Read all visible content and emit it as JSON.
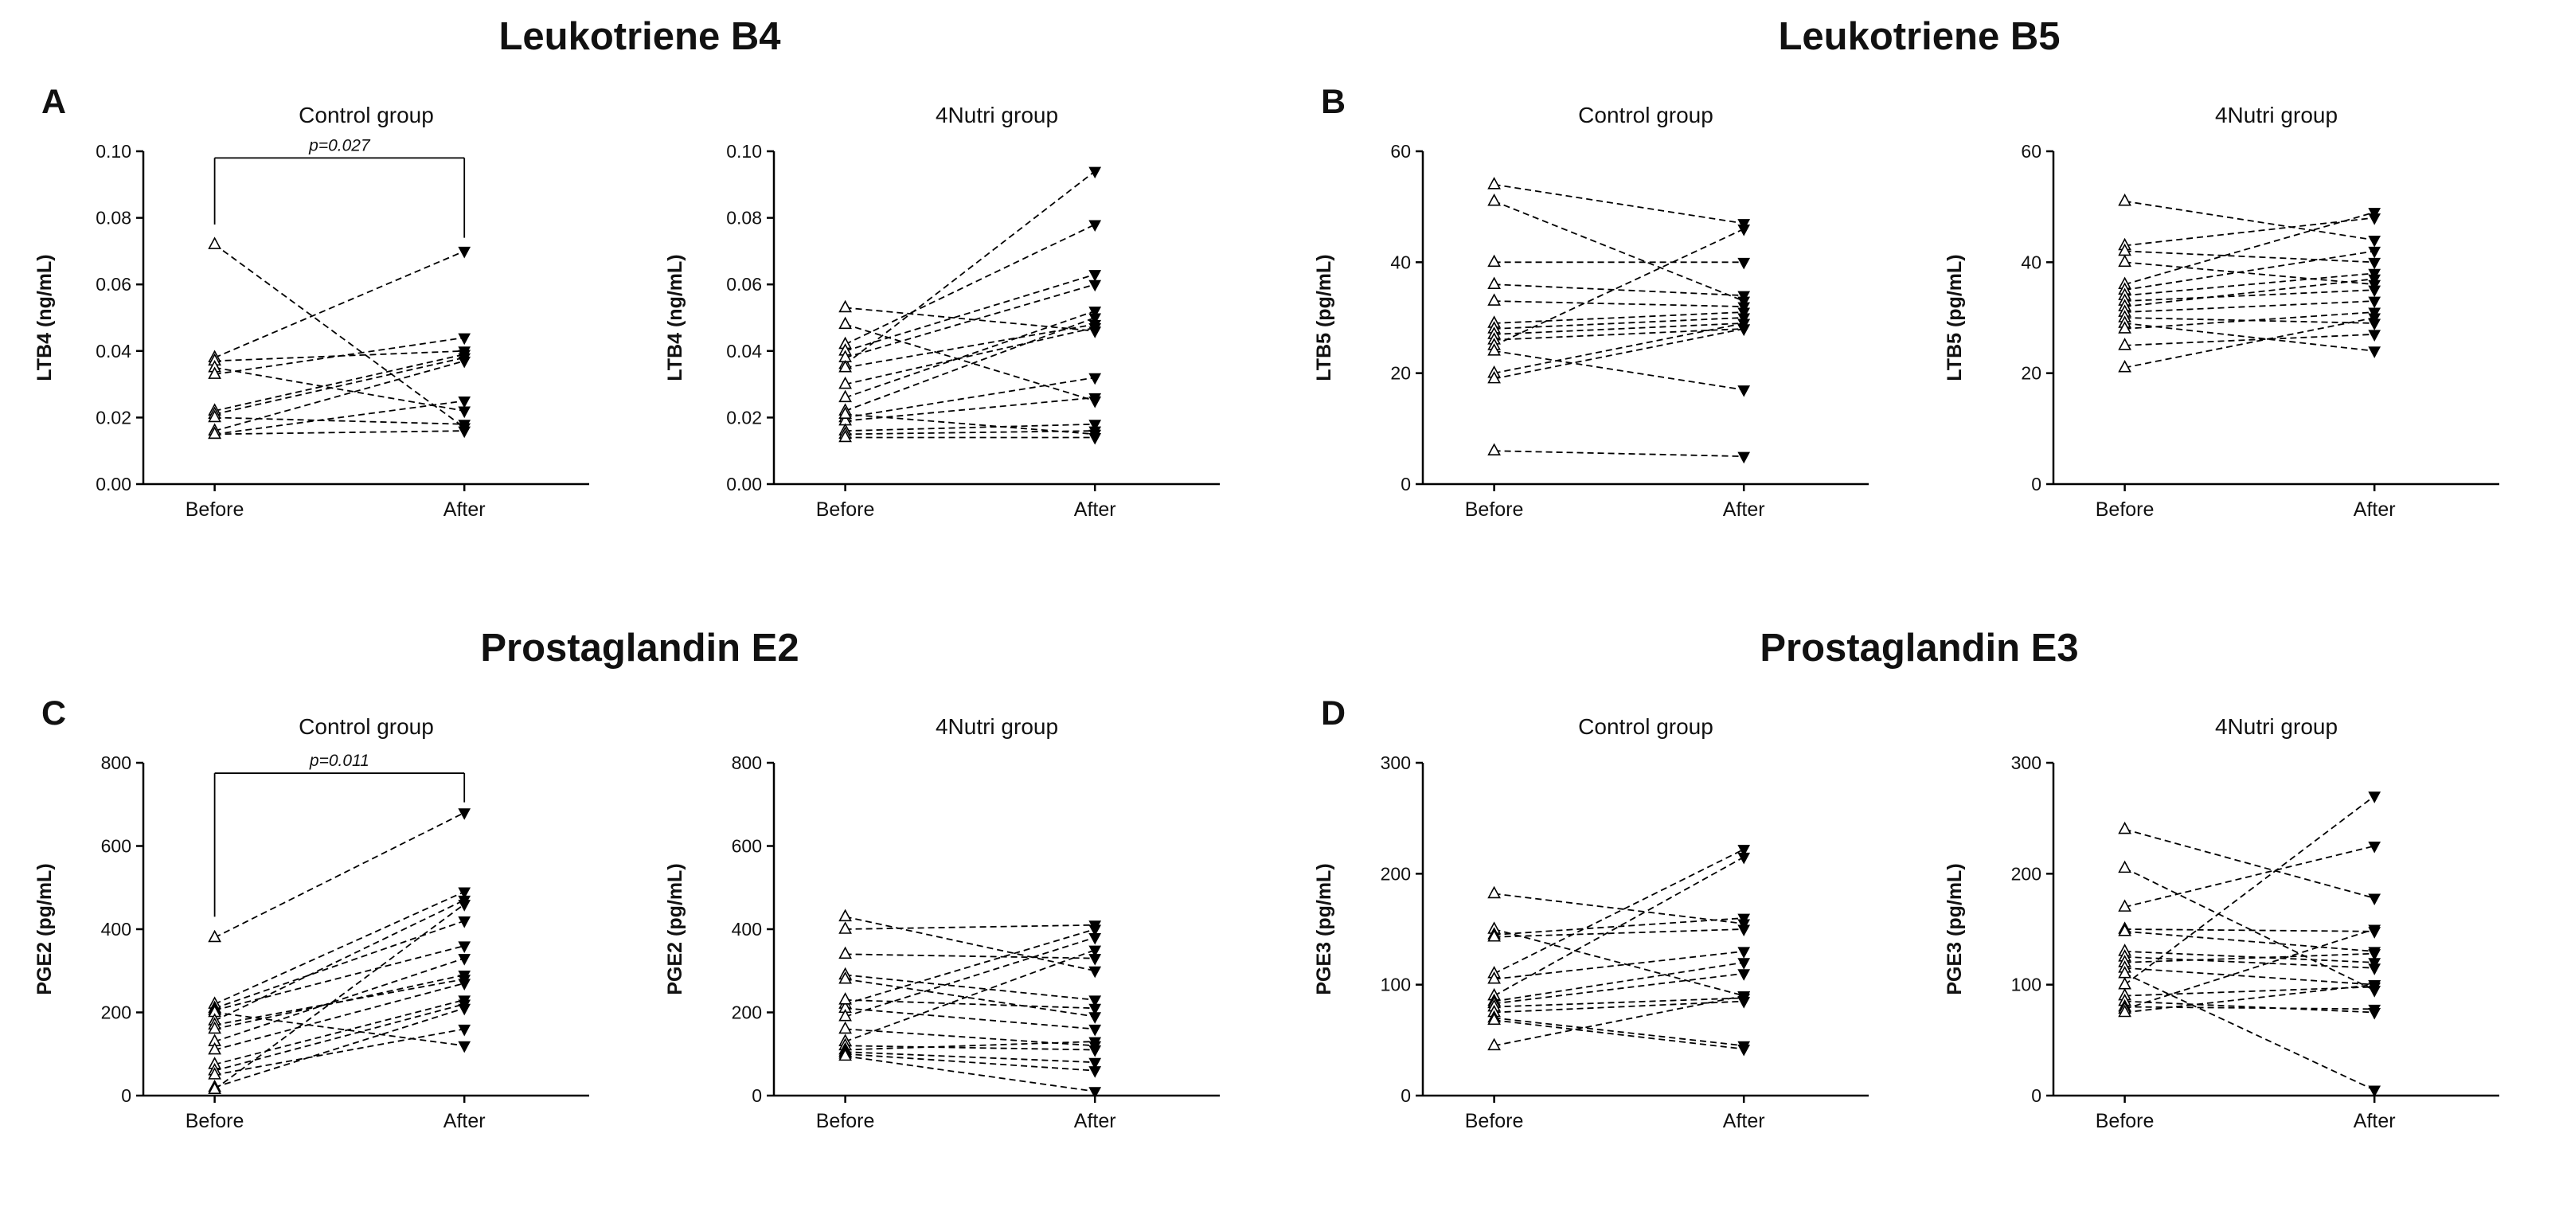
{
  "chart_style": {
    "before_marker": "open-triangle-up",
    "after_marker": "filled-triangle-down",
    "line_style": "dashed",
    "color": "#000000",
    "background": "#ffffff"
  },
  "chart_data": [
    {
      "panel": "A",
      "title": "Leukotriene B4",
      "type": "paired-line",
      "subplots": [
        {
          "title": "Control group",
          "ylabel": "LTB4 (ng/mL)",
          "x_categories": [
            "Before",
            "After"
          ],
          "ylim": [
            0,
            0.1
          ],
          "yticks": [
            0,
            0.02,
            0.04,
            0.06,
            0.08,
            0.1
          ],
          "ytick_labels": [
            "0.00",
            "0.02",
            "0.04",
            "0.06",
            "0.08",
            "0.10"
          ],
          "significance": {
            "label": "p=0.027",
            "y_top": 0.098,
            "y_left_end": 0.078,
            "y_right_end": 0.074
          },
          "pairs": [
            [
              0.072,
              0.017
            ],
            [
              0.038,
              0.07
            ],
            [
              0.037,
              0.04
            ],
            [
              0.035,
              0.022
            ],
            [
              0.033,
              0.044
            ],
            [
              0.022,
              0.039
            ],
            [
              0.021,
              0.038
            ],
            [
              0.02,
              0.018
            ],
            [
              0.016,
              0.037
            ],
            [
              0.015,
              0.025
            ],
            [
              0.015,
              0.016
            ]
          ]
        },
        {
          "title": "4Nutri group",
          "ylabel": "LTB4 (ng/mL)",
          "x_categories": [
            "Before",
            "After"
          ],
          "ylim": [
            0,
            0.1
          ],
          "yticks": [
            0,
            0.02,
            0.04,
            0.06,
            0.08,
            0.1
          ],
          "ytick_labels": [
            "0.00",
            "0.02",
            "0.04",
            "0.06",
            "0.08",
            "0.10"
          ],
          "pairs": [
            [
              0.036,
              0.094
            ],
            [
              0.042,
              0.078
            ],
            [
              0.053,
              0.046
            ],
            [
              0.048,
              0.025
            ],
            [
              0.04,
              0.063
            ],
            [
              0.038,
              0.06
            ],
            [
              0.035,
              0.048
            ],
            [
              0.03,
              0.047
            ],
            [
              0.026,
              0.052
            ],
            [
              0.022,
              0.05
            ],
            [
              0.02,
              0.032
            ],
            [
              0.019,
              0.026
            ],
            [
              0.016,
              0.018
            ],
            [
              0.015,
              0.016
            ],
            [
              0.014,
              0.014
            ],
            [
              0.021,
              0.015
            ]
          ]
        }
      ]
    },
    {
      "panel": "B",
      "title": "Leukotriene B5",
      "type": "paired-line",
      "subplots": [
        {
          "title": "Control group",
          "ylabel": "LTB5 (pg/mL)",
          "x_categories": [
            "Before",
            "After"
          ],
          "ylim": [
            0,
            60
          ],
          "yticks": [
            0,
            20,
            40,
            60
          ],
          "ytick_labels": [
            "0",
            "20",
            "40",
            "60"
          ],
          "pairs": [
            [
              54,
              47
            ],
            [
              51,
              33
            ],
            [
              40,
              40
            ],
            [
              36,
              34
            ],
            [
              33,
              32
            ],
            [
              29,
              31
            ],
            [
              28,
              30
            ],
            [
              27,
              29
            ],
            [
              26,
              28
            ],
            [
              25,
              46
            ],
            [
              24,
              17
            ],
            [
              20,
              29
            ],
            [
              19,
              28
            ],
            [
              6,
              5
            ]
          ]
        },
        {
          "title": "4Nutri group",
          "ylabel": "LTB5 (pg/mL)",
          "x_categories": [
            "Before",
            "After"
          ],
          "ylim": [
            0,
            60
          ],
          "yticks": [
            0,
            20,
            40,
            60
          ],
          "ytick_labels": [
            "0",
            "20",
            "40",
            "60"
          ],
          "pairs": [
            [
              51,
              44
            ],
            [
              43,
              48
            ],
            [
              42,
              40
            ],
            [
              40,
              36
            ],
            [
              36,
              49
            ],
            [
              35,
              42
            ],
            [
              34,
              38
            ],
            [
              33,
              35
            ],
            [
              32,
              37
            ],
            [
              31,
              33
            ],
            [
              30,
              29
            ],
            [
              29,
              24
            ],
            [
              28,
              31
            ],
            [
              25,
              27
            ],
            [
              21,
              30
            ]
          ]
        }
      ]
    },
    {
      "panel": "C",
      "title": "Prostaglandin E2",
      "type": "paired-line",
      "subplots": [
        {
          "title": "Control group",
          "ylabel": "PGE2 (pg/mL)",
          "x_categories": [
            "Before",
            "After"
          ],
          "ylim": [
            0,
            800
          ],
          "yticks": [
            0,
            200,
            400,
            600,
            800
          ],
          "ytick_labels": [
            "0",
            "200",
            "400",
            "600",
            "800"
          ],
          "significance": {
            "label": "p=0.011",
            "y_top": 775,
            "y_left_end": 430,
            "y_right_end": 705
          },
          "pairs": [
            [
              380,
              680
            ],
            [
              220,
              490
            ],
            [
              210,
              420
            ],
            [
              205,
              360
            ],
            [
              200,
              120
            ],
            [
              180,
              470
            ],
            [
              170,
              280
            ],
            [
              160,
              290
            ],
            [
              130,
              330
            ],
            [
              110,
              270
            ],
            [
              75,
              230
            ],
            [
              60,
              220
            ],
            [
              50,
              160
            ],
            [
              20,
              210
            ],
            [
              15,
              460
            ]
          ]
        },
        {
          "title": "4Nutri group",
          "ylabel": "PGE2 (pg/mL)",
          "x_categories": [
            "Before",
            "After"
          ],
          "ylim": [
            0,
            800
          ],
          "yticks": [
            0,
            200,
            400,
            600,
            800
          ],
          "ytick_labels": [
            "0",
            "200",
            "400",
            "600",
            "800"
          ],
          "pairs": [
            [
              430,
              300
            ],
            [
              400,
              410
            ],
            [
              340,
              330
            ],
            [
              290,
              230
            ],
            [
              280,
              190
            ],
            [
              220,
              400
            ],
            [
              210,
              160
            ],
            [
              190,
              380
            ],
            [
              160,
              120
            ],
            [
              130,
              350
            ],
            [
              120,
              110
            ],
            [
              110,
              130
            ],
            [
              105,
              80
            ],
            [
              100,
              60
            ],
            [
              95,
              10
            ],
            [
              230,
              210
            ]
          ]
        }
      ]
    },
    {
      "panel": "D",
      "title": "Prostaglandin E3",
      "type": "paired-line",
      "subplots": [
        {
          "title": "Control group",
          "ylabel": "PGE3 (pg/mL)",
          "x_categories": [
            "Before",
            "After"
          ],
          "ylim": [
            0,
            300
          ],
          "yticks": [
            0,
            100,
            200,
            300
          ],
          "ytick_labels": [
            "0",
            "100",
            "200",
            "300"
          ],
          "pairs": [
            [
              182,
              155
            ],
            [
              150,
              90
            ],
            [
              145,
              160
            ],
            [
              143,
              150
            ],
            [
              110,
              222
            ],
            [
              105,
              130
            ],
            [
              90,
              215
            ],
            [
              85,
              120
            ],
            [
              83,
              110
            ],
            [
              80,
              88
            ],
            [
              75,
              85
            ],
            [
              70,
              45
            ],
            [
              68,
              42
            ],
            [
              45,
              90
            ]
          ]
        },
        {
          "title": "4Nutri group",
          "ylabel": "PGE3 (pg/mL)",
          "x_categories": [
            "Before",
            "After"
          ],
          "ylim": [
            0,
            300
          ],
          "yticks": [
            0,
            100,
            200,
            300
          ],
          "ytick_labels": [
            "0",
            "100",
            "200",
            "300"
          ],
          "pairs": [
            [
              240,
              178
            ],
            [
              205,
              95
            ],
            [
              170,
              225
            ],
            [
              150,
              148
            ],
            [
              148,
              130
            ],
            [
              130,
              120
            ],
            [
              125,
              115
            ],
            [
              120,
              128
            ],
            [
              115,
              100
            ],
            [
              110,
              5
            ],
            [
              100,
              270
            ],
            [
              90,
              98
            ],
            [
              85,
              75
            ],
            [
              80,
              78
            ],
            [
              78,
              150
            ],
            [
              75,
              100
            ]
          ]
        }
      ]
    }
  ]
}
